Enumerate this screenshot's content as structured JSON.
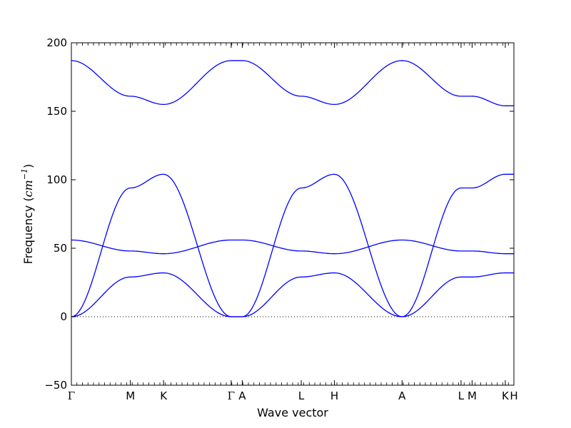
{
  "chart_data": {
    "type": "line",
    "xlabel": "Wave vector",
    "ylabel": "Frequency",
    "ylabel_unit_base": "cm",
    "ylabel_unit_exp": "−1",
    "ylim": [
      -50,
      200
    ],
    "yticks": [
      -50,
      0,
      50,
      100,
      150,
      200
    ],
    "xlim": [
      0,
      3.6
    ],
    "high_symmetry_points": [
      {
        "label": "Γ",
        "x": 0.0
      },
      {
        "label": "M",
        "x": 0.48
      },
      {
        "label": "K",
        "x": 0.75
      },
      {
        "label": "Γ",
        "x": 1.3
      },
      {
        "label": "A",
        "x": 1.39
      },
      {
        "label": "L",
        "x": 1.87
      },
      {
        "label": "H",
        "x": 2.14
      },
      {
        "label": "A",
        "x": 2.69
      },
      {
        "label": "L",
        "x": 3.17
      },
      {
        "label": "M",
        "x": 3.26
      },
      {
        "label": "K",
        "x": 3.53
      },
      {
        "label": "H",
        "x": 3.6
      }
    ],
    "minor_tick_step": 0.045,
    "zero_line": true,
    "line_color": "#0000ff",
    "series": [
      {
        "x": [
          0,
          0.48,
          0.75,
          1.3,
          1.39,
          1.87,
          2.14,
          2.69,
          3.17,
          3.26,
          3.53,
          3.6
        ],
        "values": [
          0,
          29,
          32,
          0,
          0,
          29,
          32,
          0,
          29,
          29,
          32,
          32
        ]
      },
      {
        "x": [
          0,
          0.48,
          0.75,
          1.3,
          1.39,
          1.87,
          2.14,
          2.69,
          3.17,
          3.26,
          3.53,
          3.6
        ],
        "values": [
          56,
          48,
          46,
          56,
          56,
          48,
          46,
          56,
          48,
          48,
          46,
          46
        ]
      },
      {
        "x": [
          0,
          0.48,
          0.75,
          1.3,
          1.39,
          1.87,
          2.14,
          2.69,
          3.17,
          3.26,
          3.53,
          3.6
        ],
        "values": [
          0,
          94,
          104,
          0,
          0,
          94,
          104,
          0,
          94,
          94,
          104,
          104
        ]
      },
      {
        "x": [
          0,
          0.48,
          0.75,
          1.3,
          1.39,
          1.87,
          2.14,
          2.69,
          3.17,
          3.26,
          3.53,
          3.6
        ],
        "values": [
          187,
          161,
          155,
          187,
          187,
          161,
          155,
          187,
          161,
          161,
          154,
          154
        ]
      }
    ]
  }
}
